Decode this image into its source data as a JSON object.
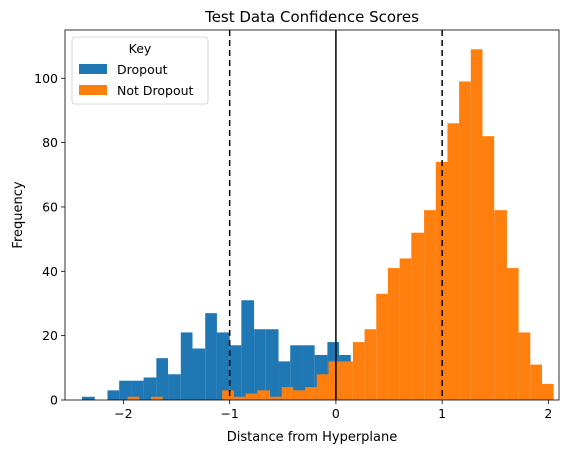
{
  "chart_data": {
    "type": "histogram",
    "title": "Test Data Confidence Scores",
    "xlabel": "Distance from Hyperplane",
    "ylabel": "Frequency",
    "xlim": [
      -2.55,
      2.1
    ],
    "ylim": [
      0,
      115
    ],
    "xticks": [
      -2,
      -1,
      0,
      1,
      2
    ],
    "xtick_labels": [
      "−2",
      "−1",
      "0",
      "1",
      "2"
    ],
    "yticks": [
      0,
      20,
      40,
      60,
      80,
      100
    ],
    "yticks_labels": [
      "0",
      "20",
      "40",
      "60",
      "80",
      "100"
    ],
    "grid": false,
    "legend": {
      "title": "Key",
      "placement": "top-left"
    },
    "reference_lines": [
      {
        "x": -1,
        "style": "dashed",
        "color": "#000000"
      },
      {
        "x": 0,
        "style": "solid",
        "color": "#000000"
      },
      {
        "x": 1,
        "style": "dashed",
        "color": "#000000"
      }
    ],
    "series": [
      {
        "name": "Dropout",
        "color": "#1f77b4",
        "bins": [
          {
            "x0": -2.39,
            "x1": -2.27,
            "y": 1
          },
          {
            "x0": -2.15,
            "x1": -2.04,
            "y": 3
          },
          {
            "x0": -2.04,
            "x1": -1.92,
            "y": 6
          },
          {
            "x0": -1.92,
            "x1": -1.81,
            "y": 6
          },
          {
            "x0": -1.81,
            "x1": -1.69,
            "y": 7
          },
          {
            "x0": -1.69,
            "x1": -1.58,
            "y": 13
          },
          {
            "x0": -1.58,
            "x1": -1.46,
            "y": 8
          },
          {
            "x0": -1.46,
            "x1": -1.35,
            "y": 21
          },
          {
            "x0": -1.35,
            "x1": -1.23,
            "y": 16
          },
          {
            "x0": -1.23,
            "x1": -1.12,
            "y": 27
          },
          {
            "x0": -1.12,
            "x1": -1.0,
            "y": 21
          },
          {
            "x0": -1.0,
            "x1": -0.89,
            "y": 17
          },
          {
            "x0": -0.89,
            "x1": -0.77,
            "y": 31
          },
          {
            "x0": -0.77,
            "x1": -0.66,
            "y": 22
          },
          {
            "x0": -0.66,
            "x1": -0.54,
            "y": 22
          },
          {
            "x0": -0.54,
            "x1": -0.43,
            "y": 12
          },
          {
            "x0": -0.43,
            "x1": -0.31,
            "y": 17
          },
          {
            "x0": -0.31,
            "x1": -0.2,
            "y": 17
          },
          {
            "x0": -0.2,
            "x1": -0.08,
            "y": 14
          },
          {
            "x0": -0.08,
            "x1": 0.03,
            "y": 18
          },
          {
            "x0": 0.03,
            "x1": 0.14,
            "y": 14
          }
        ]
      },
      {
        "name": "Not Dropout",
        "color": "#ff7f0e",
        "bins": [
          {
            "x0": -1.96,
            "x1": -1.85,
            "y": 1
          },
          {
            "x0": -1.74,
            "x1": -1.63,
            "y": 1
          },
          {
            "x0": -1.07,
            "x1": -0.96,
            "y": 3
          },
          {
            "x0": -0.96,
            "x1": -0.85,
            "y": 1
          },
          {
            "x0": -0.85,
            "x1": -0.74,
            "y": 2
          },
          {
            "x0": -0.74,
            "x1": -0.62,
            "y": 3
          },
          {
            "x0": -0.62,
            "x1": -0.51,
            "y": 1
          },
          {
            "x0": -0.51,
            "x1": -0.4,
            "y": 4
          },
          {
            "x0": -0.4,
            "x1": -0.29,
            "y": 3
          },
          {
            "x0": -0.29,
            "x1": -0.18,
            "y": 4
          },
          {
            "x0": -0.18,
            "x1": -0.07,
            "y": 8
          },
          {
            "x0": -0.07,
            "x1": 0.04,
            "y": 12
          },
          {
            "x0": 0.04,
            "x1": 0.16,
            "y": 12
          },
          {
            "x0": 0.16,
            "x1": 0.27,
            "y": 18
          },
          {
            "x0": 0.27,
            "x1": 0.38,
            "y": 22
          },
          {
            "x0": 0.38,
            "x1": 0.49,
            "y": 33
          },
          {
            "x0": 0.49,
            "x1": 0.6,
            "y": 41
          },
          {
            "x0": 0.6,
            "x1": 0.71,
            "y": 44
          },
          {
            "x0": 0.71,
            "x1": 0.83,
            "y": 52
          },
          {
            "x0": 0.83,
            "x1": 0.94,
            "y": 59
          },
          {
            "x0": 0.94,
            "x1": 1.05,
            "y": 74
          },
          {
            "x0": 1.05,
            "x1": 1.16,
            "y": 86
          },
          {
            "x0": 1.16,
            "x1": 1.27,
            "y": 99
          },
          {
            "x0": 1.27,
            "x1": 1.38,
            "y": 109
          },
          {
            "x0": 1.38,
            "x1": 1.49,
            "y": 82
          },
          {
            "x0": 1.49,
            "x1": 1.61,
            "y": 59
          },
          {
            "x0": 1.61,
            "x1": 1.72,
            "y": 41
          },
          {
            "x0": 1.72,
            "x1": 1.83,
            "y": 21
          },
          {
            "x0": 1.83,
            "x1": 1.94,
            "y": 11
          },
          {
            "x0": 1.94,
            "x1": 2.05,
            "y": 5
          }
        ]
      }
    ]
  }
}
